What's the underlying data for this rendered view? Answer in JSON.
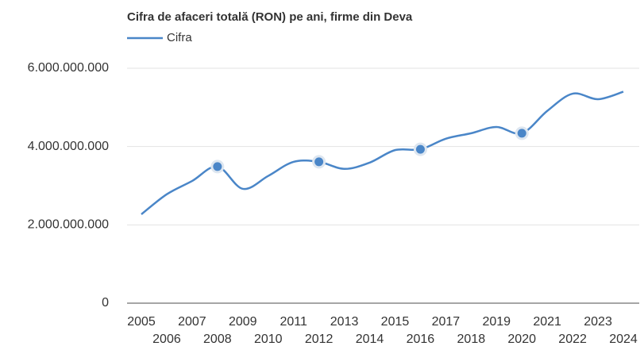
{
  "chart_data": {
    "type": "line",
    "title": "Cifra de afaceri totală (RON) pe ani, firme din Deva",
    "x": [
      2005,
      2006,
      2007,
      2008,
      2009,
      2010,
      2011,
      2012,
      2013,
      2014,
      2015,
      2016,
      2017,
      2018,
      2019,
      2020,
      2021,
      2022,
      2023,
      2024
    ],
    "series": [
      {
        "name": "Cifra",
        "color": "#4a86c8",
        "values": [
          2270000000,
          2780000000,
          3120000000,
          3490000000,
          2920000000,
          3250000000,
          3610000000,
          3610000000,
          3430000000,
          3590000000,
          3910000000,
          3930000000,
          4200000000,
          4340000000,
          4500000000,
          4340000000,
          4910000000,
          5350000000,
          5210000000,
          5400000000
        ]
      }
    ],
    "markers": [
      2008,
      2012,
      2016,
      2020
    ],
    "xlim": [
      2005,
      2024
    ],
    "ylim": [
      0,
      6000000000
    ],
    "yticks": [
      0,
      {
        "value": 2000000000,
        "label": "2.000.000.000"
      },
      {
        "value": 4000000000,
        "label": "4.000.000.000"
      },
      {
        "value": 6000000000,
        "label": "6.000.000.000"
      }
    ],
    "grid": true,
    "legend": "top-left"
  }
}
